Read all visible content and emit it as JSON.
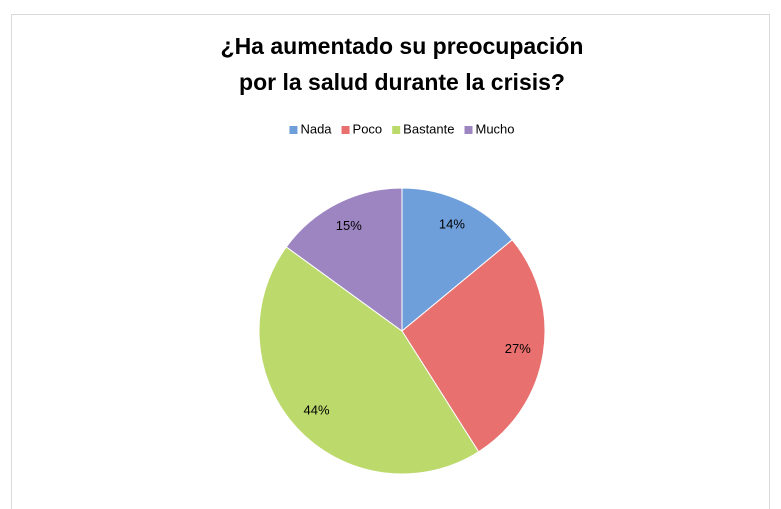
{
  "chart_data": {
    "type": "pie",
    "title": [
      "¿Ha aumentado su preocupación",
      "por la salud durante la crisis?"
    ],
    "categories": [
      "Nada",
      "Poco",
      "Bastante",
      "Mucho"
    ],
    "values": [
      14,
      27,
      44,
      15
    ],
    "value_labels": [
      "14%",
      "27%",
      "44%",
      "15%"
    ],
    "colors": [
      "#6f9fdb",
      "#e8706e",
      "#bcd96c",
      "#9d85c2"
    ],
    "legend": "top"
  }
}
